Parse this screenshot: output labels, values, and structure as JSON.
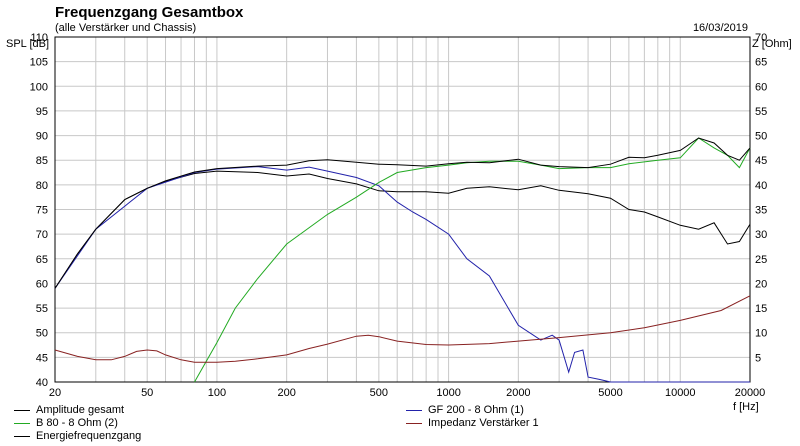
{
  "chart_data": {
    "type": "line",
    "title": "Frequenzgang Gesamtbox",
    "subtitle": "(alle Verstärker und Chassis)",
    "date": "16/03/2019",
    "xlabel": "f [Hz]",
    "ylabel": "SPL [dB]",
    "y2label": "Z [Ohm]",
    "xscale": "log",
    "xlim": [
      20,
      20000
    ],
    "ylim": [
      40,
      110
    ],
    "y2lim": [
      0,
      70
    ],
    "grid": true,
    "x_ticks": [
      "20",
      "50",
      "100",
      "200",
      "500",
      "1000",
      "2000",
      "5000",
      "10000",
      "20000"
    ],
    "x_tick_values": [
      20,
      50,
      100,
      200,
      500,
      1000,
      2000,
      5000,
      10000,
      20000
    ],
    "y_ticks": [
      "40",
      "45",
      "50",
      "55",
      "60",
      "65",
      "70",
      "75",
      "80",
      "85",
      "90",
      "95",
      "100",
      "105",
      "110"
    ],
    "y2_ticks": [
      "0",
      "5",
      "10",
      "15",
      "20",
      "25",
      "30",
      "35",
      "40",
      "45",
      "50",
      "55",
      "60",
      "65",
      "70"
    ],
    "series": [
      {
        "name": "Amplitude gesamt",
        "color": "#000000",
        "axis": "left",
        "x": [
          20,
          25,
          30,
          40,
          50,
          60,
          80,
          100,
          150,
          200,
          250,
          300,
          400,
          500,
          600,
          800,
          1000,
          1200,
          1500,
          2000,
          2500,
          3000,
          4000,
          5000,
          6000,
          7000,
          8000,
          10000,
          12000,
          14000,
          16000,
          18000,
          20000
        ],
        "y": [
          59,
          66,
          71,
          77,
          79.3,
          80.7,
          82.3,
          82.8,
          82.5,
          81.8,
          82.2,
          81.3,
          80.2,
          78.8,
          78.6,
          78.6,
          78.3,
          79.3,
          79.6,
          79,
          79.8,
          78.9,
          78.2,
          77.3,
          75,
          74.5,
          73.5,
          71.8,
          71,
          72.3,
          68,
          68.5,
          72
        ]
      },
      {
        "name": "GF 200 - 8 Ohm (1)",
        "color": "#2222aa",
        "axis": "left",
        "x": [
          20,
          30,
          50,
          80,
          100,
          150,
          200,
          250,
          300,
          400,
          500,
          600,
          700,
          800,
          1000,
          1200,
          1500,
          2000,
          2500,
          2800,
          3000,
          3300,
          3500,
          3800,
          4000,
          4500,
          5000,
          5500,
          6000,
          8000,
          10000,
          20000
        ],
        "y": [
          59,
          71,
          79.3,
          82.5,
          83.2,
          83.7,
          83,
          83.6,
          82.8,
          81.5,
          79.8,
          76.5,
          74.5,
          73,
          70,
          65,
          61.5,
          51.5,
          48.5,
          49.5,
          48.5,
          42,
          46,
          46.5,
          41,
          40.5,
          40,
          40,
          40,
          40,
          40,
          40
        ]
      },
      {
        "name": "B 80 - 8 Ohm (2)",
        "color": "#22aa22",
        "axis": "left",
        "x": [
          80,
          100,
          120,
          150,
          200,
          300,
          400,
          500,
          600,
          800,
          1000,
          1200,
          1500,
          2000,
          2500,
          3000,
          4000,
          5000,
          6000,
          8000,
          10000,
          12000,
          14000,
          16000,
          18000,
          20000
        ],
        "y": [
          40,
          48,
          55,
          61,
          68,
          74,
          77.5,
          80.5,
          82.5,
          83.5,
          84,
          84.5,
          84.8,
          84.8,
          84,
          83.3,
          83.5,
          83.5,
          84.3,
          85,
          85.5,
          89.5,
          87.5,
          86,
          83.5,
          87.5
        ]
      },
      {
        "name": "Energiefrequenzgang",
        "color": "#000000",
        "axis": "left",
        "x": [
          20,
          25,
          30,
          40,
          50,
          60,
          80,
          100,
          150,
          200,
          250,
          300,
          400,
          500,
          600,
          800,
          1000,
          1200,
          1500,
          2000,
          2500,
          3000,
          4000,
          5000,
          6000,
          7000,
          8000,
          10000,
          12000,
          14000,
          16000,
          18000,
          20000
        ],
        "y": [
          59,
          66,
          71,
          77,
          79.3,
          80.8,
          82.6,
          83.3,
          83.8,
          84,
          84.9,
          85.1,
          84.6,
          84.2,
          84.1,
          83.8,
          84.3,
          84.6,
          84.5,
          85.2,
          84,
          83.7,
          83.5,
          84.2,
          85.6,
          85.5,
          86,
          87,
          89.5,
          88.5,
          86,
          85,
          87.5
        ]
      },
      {
        "name": "Impedanz Verstärker 1",
        "color": "#882222",
        "axis": "right",
        "x": [
          20,
          25,
          30,
          35,
          40,
          45,
          50,
          55,
          60,
          70,
          80,
          100,
          120,
          150,
          200,
          250,
          300,
          400,
          450,
          500,
          600,
          800,
          1000,
          1500,
          2000,
          3000,
          5000,
          7000,
          10000,
          15000,
          20000
        ],
        "y": [
          6.5,
          5.2,
          4.5,
          4.5,
          5.2,
          6.2,
          6.5,
          6.3,
          5.5,
          4.5,
          4,
          4,
          4.2,
          4.7,
          5.5,
          6.8,
          7.7,
          9.3,
          9.5,
          9.2,
          8.3,
          7.6,
          7.5,
          7.8,
          8.3,
          9,
          10,
          11,
          12.5,
          14.5,
          17.5
        ]
      }
    ]
  }
}
